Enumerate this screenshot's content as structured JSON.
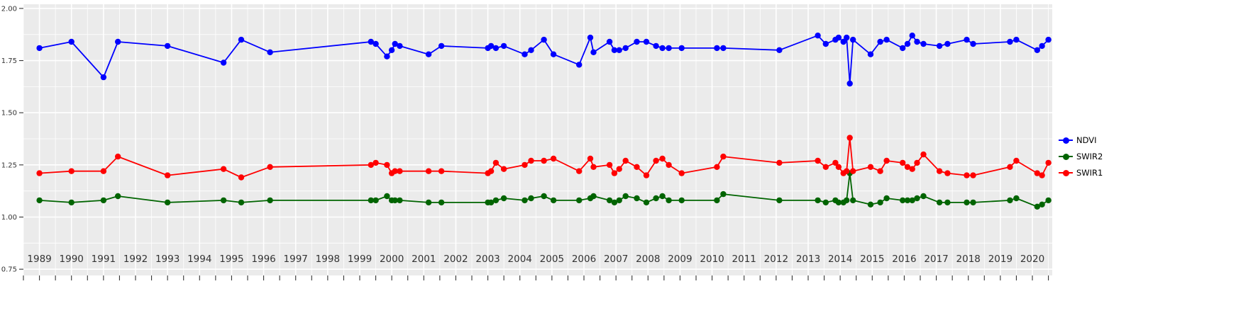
{
  "style": {
    "background": "#FFFFFF",
    "panel_bg": "#EBEBEB",
    "grid_color": "#FFFFFF",
    "axis_text_color": "#333333",
    "tick_color": "#333333"
  },
  "legend": {
    "position": "right",
    "items": [
      {
        "label": "NDVI",
        "color": "#0000FF"
      },
      {
        "label": "SWIR2",
        "color": "#006400"
      },
      {
        "label": "SWIR1",
        "color": "#FF0000"
      }
    ]
  },
  "chart_data": {
    "type": "line",
    "title": "",
    "xlabel": "",
    "ylabel": "",
    "grid": "major+minor",
    "legend_position": "right",
    "x_axis": {
      "xlim": [
        1988.5,
        2020.62
      ],
      "tick_values": [
        1989,
        1990,
        1991,
        1992,
        1993,
        1994,
        1995,
        1996,
        1997,
        1998,
        1999,
        2000,
        2001,
        2002,
        2003,
        2004,
        2005,
        2006,
        2007,
        2008,
        2009,
        2010,
        2011,
        2012,
        2013,
        2014,
        2015,
        2016,
        2017,
        2018,
        2019,
        2020
      ],
      "minor_tick_step": 0.5
    },
    "y_axis": {
      "ylim": [
        0.72,
        2.02
      ],
      "tick_values": [
        0.75,
        1.0,
        1.25,
        1.5,
        1.75,
        2.0
      ],
      "tick_labels": [
        "0.75",
        "1.00",
        "1.25",
        "1.50",
        "1.75",
        "2.00"
      ],
      "minor_tick_values": [
        0.875,
        1.125,
        1.375,
        1.625,
        1.875
      ]
    },
    "x": [
      1989.0,
      1990.0,
      1991.0,
      1991.45,
      1993.0,
      1994.75,
      1995.3,
      1996.2,
      1999.35,
      1999.5,
      1999.85,
      2000.0,
      2000.1,
      2000.25,
      2001.15,
      2001.55,
      2003.0,
      2003.1,
      2003.25,
      2003.5,
      2004.15,
      2004.35,
      2004.75,
      2005.05,
      2005.85,
      2006.2,
      2006.3,
      2006.8,
      2006.95,
      2007.1,
      2007.3,
      2007.65,
      2007.95,
      2008.25,
      2008.45,
      2008.65,
      2009.05,
      2010.15,
      2010.35,
      2012.1,
      2013.3,
      2013.55,
      2013.85,
      2013.95,
      2014.1,
      2014.2,
      2014.3,
      2014.4,
      2014.95,
      2015.25,
      2015.45,
      2015.95,
      2016.1,
      2016.25,
      2016.4,
      2016.6,
      2017.1,
      2017.35,
      2017.95,
      2018.15,
      2019.3,
      2019.5,
      2020.15,
      2020.3,
      2020.5
    ],
    "series": [
      {
        "name": "NDVI",
        "color": "#0000FF",
        "values": [
          1.81,
          1.84,
          1.67,
          1.84,
          1.82,
          1.74,
          1.85,
          1.79,
          1.84,
          1.83,
          1.77,
          1.8,
          1.83,
          1.82,
          1.78,
          1.82,
          1.81,
          1.82,
          1.81,
          1.82,
          1.78,
          1.8,
          1.85,
          1.78,
          1.73,
          1.86,
          1.79,
          1.84,
          1.8,
          1.8,
          1.81,
          1.84,
          1.84,
          1.82,
          1.81,
          1.81,
          1.81,
          1.81,
          1.81,
          1.8,
          1.87,
          1.83,
          1.85,
          1.86,
          1.84,
          1.86,
          1.64,
          1.85,
          1.78,
          1.84,
          1.85,
          1.81,
          1.83,
          1.87,
          1.84,
          1.83,
          1.82,
          1.83,
          1.85,
          1.83,
          1.84,
          1.85,
          1.8,
          1.82,
          1.85
        ]
      },
      {
        "name": "SWIR2",
        "color": "#006400",
        "values": [
          1.08,
          1.07,
          1.08,
          1.1,
          1.07,
          1.08,
          1.07,
          1.08,
          1.08,
          1.08,
          1.1,
          1.08,
          1.08,
          1.08,
          1.07,
          1.07,
          1.07,
          1.07,
          1.08,
          1.09,
          1.08,
          1.09,
          1.1,
          1.08,
          1.08,
          1.09,
          1.1,
          1.08,
          1.07,
          1.08,
          1.1,
          1.09,
          1.07,
          1.09,
          1.1,
          1.08,
          1.08,
          1.08,
          1.11,
          1.08,
          1.08,
          1.07,
          1.08,
          1.07,
          1.07,
          1.08,
          1.21,
          1.08,
          1.06,
          1.07,
          1.09,
          1.08,
          1.08,
          1.08,
          1.09,
          1.1,
          1.07,
          1.07,
          1.07,
          1.07,
          1.08,
          1.09,
          1.05,
          1.06,
          1.08
        ]
      },
      {
        "name": "SWIR1",
        "color": "#FF0000",
        "values": [
          1.21,
          1.22,
          1.22,
          1.29,
          1.2,
          1.23,
          1.19,
          1.24,
          1.25,
          1.26,
          1.25,
          1.21,
          1.22,
          1.22,
          1.22,
          1.22,
          1.21,
          1.22,
          1.26,
          1.23,
          1.25,
          1.27,
          1.27,
          1.28,
          1.22,
          1.28,
          1.24,
          1.25,
          1.21,
          1.23,
          1.27,
          1.24,
          1.2,
          1.27,
          1.28,
          1.25,
          1.21,
          1.24,
          1.29,
          1.26,
          1.27,
          1.24,
          1.26,
          1.24,
          1.21,
          1.22,
          1.38,
          1.22,
          1.24,
          1.22,
          1.27,
          1.26,
          1.24,
          1.23,
          1.26,
          1.3,
          1.22,
          1.21,
          1.2,
          1.2,
          1.24,
          1.27,
          1.21,
          1.2,
          1.26
        ]
      }
    ]
  }
}
